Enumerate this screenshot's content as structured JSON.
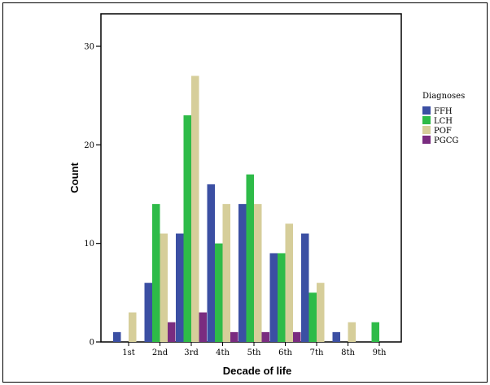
{
  "chart_data": {
    "type": "bar",
    "title": "",
    "xlabel": "Decade of life",
    "ylabel": "Count",
    "categories": [
      "1st",
      "2nd",
      "3rd",
      "4th",
      "5th",
      "6th",
      "7th",
      "8th",
      "9th"
    ],
    "ylim": [
      0,
      30
    ],
    "yticks": [
      0,
      10,
      20,
      30
    ],
    "legend_title": "Diagnoses",
    "legend_position": "right",
    "grid": false,
    "series": [
      {
        "name": "FFH",
        "color": "#3B4FA3",
        "values": [
          1,
          6,
          11,
          16,
          14,
          9,
          11,
          1,
          0
        ]
      },
      {
        "name": "LCH",
        "color": "#2EBB48",
        "values": [
          0,
          14,
          23,
          10,
          17,
          9,
          5,
          0,
          2
        ]
      },
      {
        "name": "POF",
        "color": "#D6CE9A",
        "values": [
          3,
          11,
          27,
          14,
          14,
          12,
          6,
          2,
          0
        ]
      },
      {
        "name": "PGCG",
        "color": "#7A2C80",
        "values": [
          0,
          2,
          3,
          1,
          1,
          1,
          0,
          0,
          0
        ]
      }
    ]
  }
}
